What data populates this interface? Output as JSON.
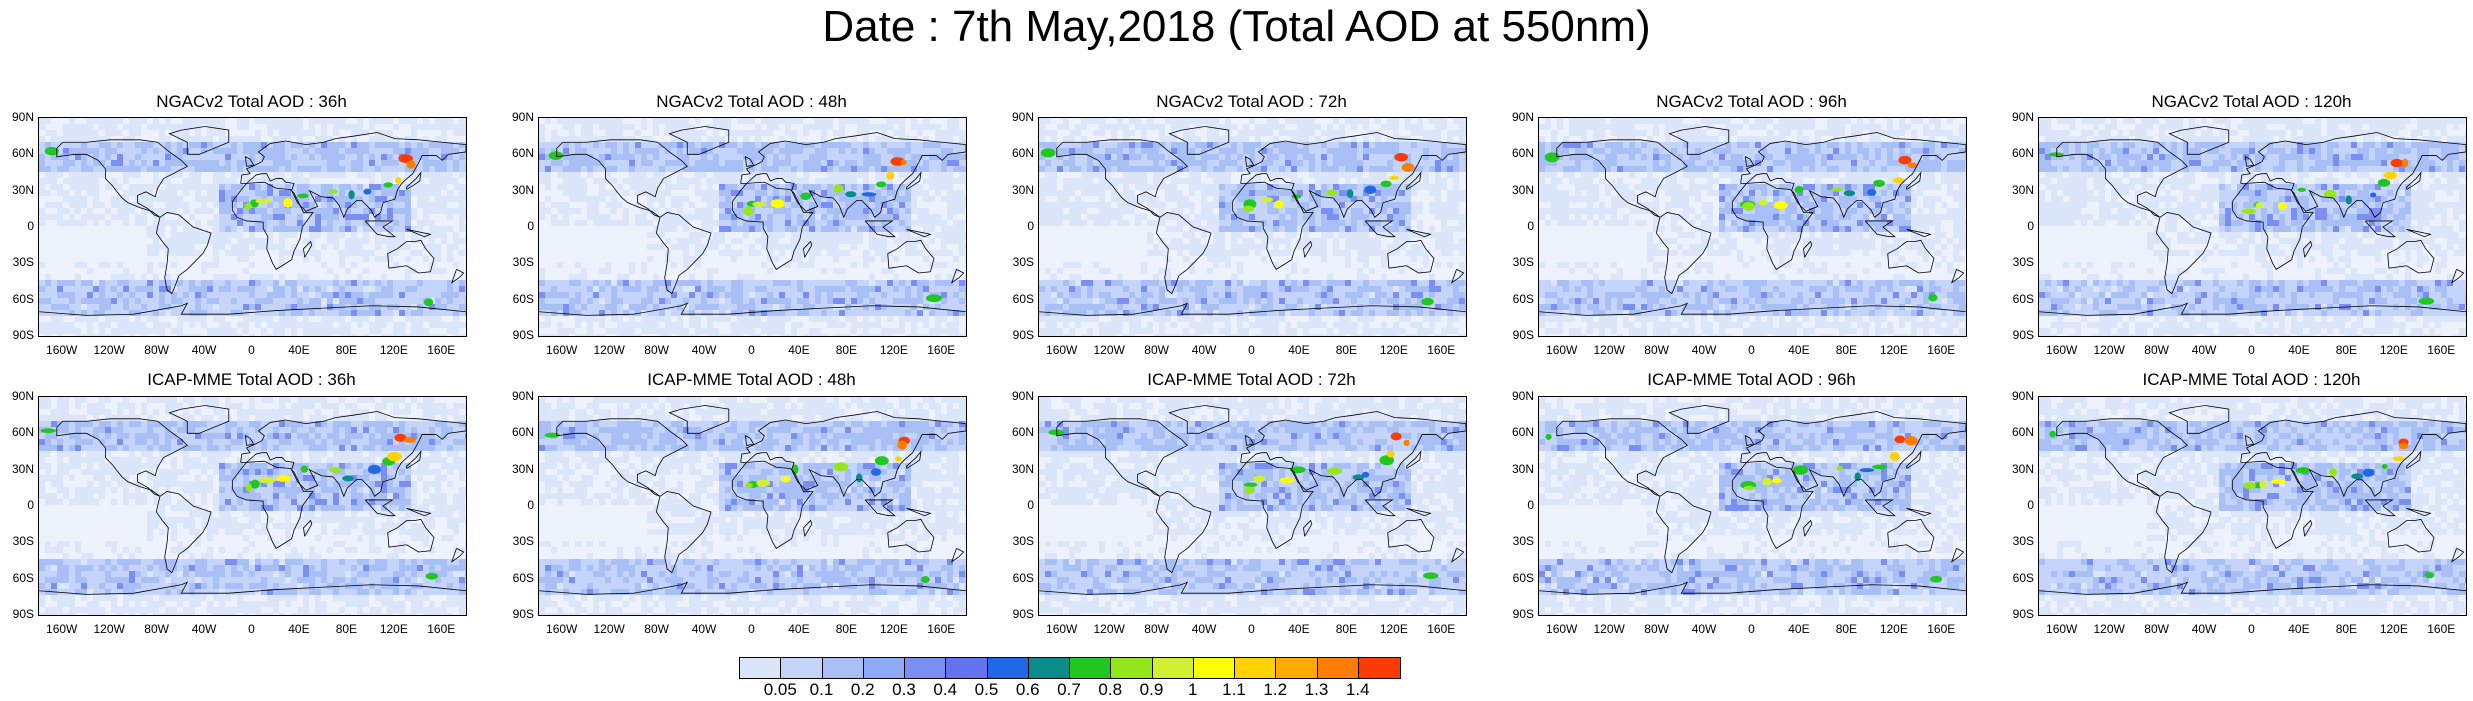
{
  "title": "Date : 7th May,2018 (Total AOD at 550nm)",
  "panels": [
    {
      "title": "NGACv2 Total AOD : 36h",
      "model": "NGACv2",
      "lead": "36h"
    },
    {
      "title": "NGACv2 Total AOD : 48h",
      "model": "NGACv2",
      "lead": "48h"
    },
    {
      "title": "NGACv2 Total AOD : 72h",
      "model": "NGACv2",
      "lead": "72h"
    },
    {
      "title": "NGACv2 Total AOD : 96h",
      "model": "NGACv2",
      "lead": "96h"
    },
    {
      "title": "NGACv2 Total AOD : 120h",
      "model": "NGACv2",
      "lead": "120h"
    },
    {
      "title": "ICAP-MME Total AOD : 36h",
      "model": "ICAP-MME",
      "lead": "36h"
    },
    {
      "title": "ICAP-MME Total AOD : 48h",
      "model": "ICAP-MME",
      "lead": "48h"
    },
    {
      "title": "ICAP-MME Total AOD : 72h",
      "model": "ICAP-MME",
      "lead": "72h"
    },
    {
      "title": "ICAP-MME Total AOD : 96h",
      "model": "ICAP-MME",
      "lead": "96h"
    },
    {
      "title": "ICAP-MME Total AOD : 120h",
      "model": "ICAP-MME",
      "lead": "120h"
    }
  ],
  "lat_ticks": [
    "90N",
    "60N",
    "30N",
    "0",
    "30S",
    "60S",
    "90S"
  ],
  "lon_ticks": [
    "160W",
    "120W",
    "80W",
    "40W",
    "0",
    "40E",
    "80E",
    "120E",
    "160E"
  ],
  "colorbar": {
    "labels": [
      "0.05",
      "0.1",
      "0.2",
      "0.3",
      "0.4",
      "0.5",
      "0.6",
      "0.7",
      "0.8",
      "0.9",
      "1",
      "1.1",
      "1.2",
      "1.3",
      "1.4"
    ],
    "colors": [
      "#ffffff",
      "#dbe6fb",
      "#c4d4fa",
      "#a9c0f7",
      "#8ea9f5",
      "#7b8ff2",
      "#6374ee",
      "#1f68e6",
      "#0a8c8a",
      "#1ec81e",
      "#96e61e",
      "#d2f032",
      "#ffff00",
      "#ffd200",
      "#ffaa00",
      "#ff7d00",
      "#ff3c00"
    ]
  }
}
